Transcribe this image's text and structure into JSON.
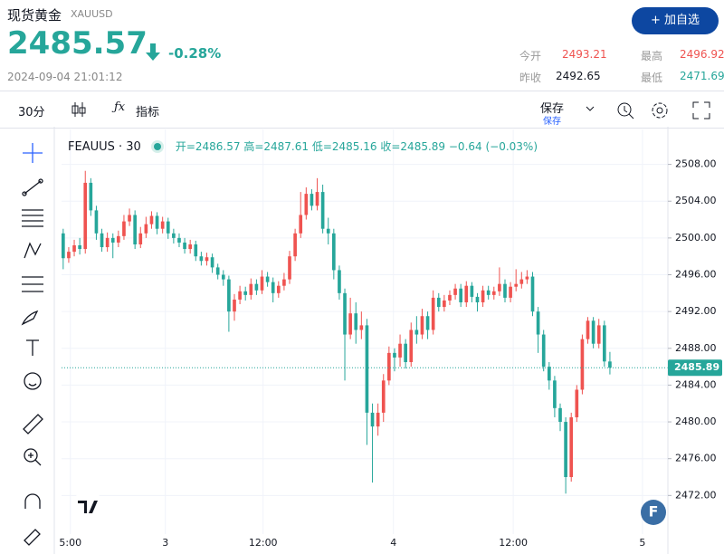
{
  "header": {
    "name": "现货黄金",
    "symbol": "XAUUSD",
    "price": "2485.57",
    "change": "-0.28%",
    "time": "2024-09-04 21:01:12",
    "button": "+ 加自选",
    "stats": [
      {
        "label": "今开",
        "value": "2493.21"
      },
      {
        "label": "最高",
        "value": "2496.92"
      },
      {
        "label": "昨收",
        "value": "2492.65"
      },
      {
        "label": "最低",
        "value": "2471.69"
      }
    ]
  },
  "toolbar": {
    "interval": "30分",
    "indicators": "指标",
    "save": "保存",
    "save_sub": "保存"
  },
  "chart_data": {
    "type": "candlestick",
    "symbol": "FEAUUS · 30",
    "ohlc_labels": [
      "开=",
      "高=",
      "低=",
      "收="
    ],
    "change": "−0.64 (−0.03%)",
    "colors": {
      "up": "#ef5350",
      "down": "#26a69a"
    },
    "grid": true,
    "xlim": [
      -0.3,
      109.5
    ],
    "ylim": [
      2467.8,
      2511.8
    ],
    "xticks": [
      {
        "value": 1.3,
        "label": "5:00"
      },
      {
        "value": 18.5,
        "label": "3"
      },
      {
        "value": 36.2,
        "label": "12:00"
      },
      {
        "value": 59.8,
        "label": "4"
      },
      {
        "value": 81.5,
        "label": "12:00"
      },
      {
        "value": 104.9,
        "label": "5"
      }
    ],
    "yticks": [
      {
        "value": 2472,
        "label": "2472.00"
      },
      {
        "value": 2476,
        "label": "2476.00"
      },
      {
        "value": 2480,
        "label": "2480.00"
      },
      {
        "value": 2484,
        "label": "2484.00"
      },
      {
        "value": 2488,
        "label": "2488.00"
      },
      {
        "value": 2492,
        "label": "2492.00"
      },
      {
        "value": 2496,
        "label": "2496.00"
      },
      {
        "value": 2500,
        "label": "2500.00"
      },
      {
        "value": 2504,
        "label": "2504.00"
      },
      {
        "value": 2508,
        "label": "2508.00"
      }
    ],
    "open": [
      2500.5,
      2497.8,
      2498.5,
      2499.2,
      2498.8,
      2506.0,
      2503.0,
      2500.5,
      2499.0,
      2500.0,
      2499.5,
      2500.2,
      2501.8,
      2502.5,
      2499.3,
      2500.5,
      2501.5,
      2502.4,
      2501.0,
      2501.8,
      2500.5,
      2500.0,
      2499.5,
      2498.8,
      2499.3,
      2498.0,
      2497.5,
      2497.9,
      2496.8,
      2496.0,
      2495.5,
      2492.0,
      2493.3,
      2494.2,
      2493.8,
      2495.0,
      2494.3,
      2495.8,
      2495.2,
      2494.0,
      2494.8,
      2495.5,
      2498.0,
      2500.5,
      2502.5,
      2504.8,
      2503.5,
      2505.0,
      2501.0,
      2500.5,
      2496.5,
      2494.0,
      2489.5,
      2491.8,
      2490.0,
      2490.5,
      2481.0,
      2479.5,
      2481.0,
      2484.5,
      2487.5,
      2487.0,
      2488.5,
      2486.5,
      2490.0,
      2489.5,
      2491.5,
      2490.0,
      2493.5,
      2492.5,
      2493.2,
      2493.8,
      2494.5,
      2493.0,
      2494.8,
      2493.6,
      2493.0,
      2494.3,
      2493.8,
      2494.2,
      2495.0,
      2493.5,
      2494.7,
      2495.0,
      2495.5,
      2495.8,
      2492.0,
      2489.5,
      2486.0,
      2484.5,
      2481.5,
      2480.0,
      2474.0,
      2480.5,
      2483.5,
      2489.0,
      2491.0,
      2488.5,
      2490.5,
      2486.57
    ],
    "high": [
      2501.0,
      2499.0,
      2499.8,
      2500.0,
      2507.3,
      2506.5,
      2503.5,
      2501.0,
      2500.6,
      2500.5,
      2500.8,
      2502.5,
      2503.2,
      2503.0,
      2501.2,
      2502.3,
      2502.9,
      2502.8,
      2502.3,
      2502.2,
      2501.0,
      2500.5,
      2500.0,
      2499.8,
      2499.7,
      2498.5,
      2498.4,
      2498.3,
      2497.2,
      2496.5,
      2495.9,
      2493.9,
      2494.8,
      2494.7,
      2495.6,
      2495.5,
      2496.5,
      2496.3,
      2495.7,
      2495.3,
      2496.2,
      2498.6,
      2501.0,
      2505.0,
      2505.5,
      2505.3,
      2506.5,
      2505.8,
      2502.2,
      2501.0,
      2497.0,
      2494.5,
      2493.5,
      2493.0,
      2492.0,
      2491.2,
      2482.0,
      2482.0,
      2485.2,
      2488.2,
      2488.0,
      2489.5,
      2489.0,
      2490.8,
      2491.5,
      2492.3,
      2492.0,
      2494.3,
      2494.0,
      2493.8,
      2494.3,
      2495.0,
      2495.0,
      2495.3,
      2495.2,
      2494.0,
      2494.8,
      2494.8,
      2494.7,
      2496.8,
      2495.5,
      2495.2,
      2496.6,
      2496.3,
      2496.5,
      2496.3,
      2492.5,
      2490.0,
      2486.5,
      2485.0,
      2482.0,
      2480.5,
      2481.0,
      2484.0,
      2489.5,
      2491.4,
      2491.4,
      2491.2,
      2491.0,
      2487.61
    ],
    "low": [
      2496.6,
      2497.3,
      2498.0,
      2498.2,
      2498.3,
      2502.4,
      2499.8,
      2498.5,
      2498.5,
      2497.8,
      2499.0,
      2499.8,
      2501.3,
      2498.8,
      2498.9,
      2500.0,
      2501.0,
      2500.4,
      2500.5,
      2499.9,
      2499.4,
      2499.0,
      2498.3,
      2498.3,
      2497.5,
      2497.0,
      2497.0,
      2496.2,
      2495.5,
      2494.8,
      2489.8,
      2491.0,
      2492.8,
      2493.2,
      2493.3,
      2493.8,
      2493.9,
      2494.7,
      2493.0,
      2493.5,
      2494.3,
      2495.0,
      2497.5,
      2500.0,
      2502.0,
      2503.0,
      2503.0,
      2500.5,
      2499.3,
      2495.5,
      2493.3,
      2484.5,
      2489.0,
      2488.5,
      2489.0,
      2477.5,
      2473.4,
      2478.5,
      2480.0,
      2484.0,
      2485.5,
      2486.0,
      2485.8,
      2486.0,
      2488.5,
      2489.0,
      2489.0,
      2489.5,
      2492.0,
      2492.0,
      2492.7,
      2493.3,
      2492.5,
      2492.5,
      2493.0,
      2492.0,
      2492.5,
      2493.3,
      2493.3,
      2493.7,
      2493.0,
      2493.0,
      2494.2,
      2494.5,
      2495.0,
      2491.5,
      2487.5,
      2485.5,
      2483.5,
      2480.5,
      2479.0,
      2472.2,
      2473.5,
      2480.0,
      2483.0,
      2488.5,
      2488.0,
      2488.0,
      2486.0,
      2485.16
    ],
    "close": [
      2497.8,
      2498.5,
      2499.2,
      2498.8,
      2506.0,
      2503.0,
      2500.5,
      2499.0,
      2500.0,
      2499.5,
      2500.2,
      2501.8,
      2502.5,
      2499.3,
      2500.5,
      2501.5,
      2502.4,
      2501.0,
      2501.8,
      2500.5,
      2500.0,
      2499.5,
      2498.8,
      2499.3,
      2498.0,
      2497.5,
      2497.9,
      2496.8,
      2496.0,
      2495.5,
      2492.0,
      2493.3,
      2494.2,
      2493.8,
      2495.0,
      2494.3,
      2495.8,
      2495.2,
      2494.0,
      2494.8,
      2495.5,
      2498.0,
      2500.5,
      2502.5,
      2504.8,
      2503.5,
      2505.0,
      2501.0,
      2500.5,
      2496.5,
      2494.0,
      2489.5,
      2491.8,
      2490.0,
      2490.5,
      2481.0,
      2479.5,
      2481.0,
      2484.5,
      2487.5,
      2487.0,
      2488.5,
      2486.5,
      2490.0,
      2489.5,
      2491.5,
      2490.0,
      2493.5,
      2492.5,
      2493.2,
      2493.8,
      2494.5,
      2493.0,
      2494.8,
      2493.6,
      2493.0,
      2494.3,
      2493.8,
      2494.2,
      2495.0,
      2493.5,
      2494.7,
      2495.0,
      2495.5,
      2495.8,
      2492.0,
      2489.5,
      2486.0,
      2484.5,
      2481.5,
      2480.0,
      2474.0,
      2480.5,
      2483.5,
      2489.0,
      2491.0,
      2488.5,
      2490.5,
      2486.57,
      2485.89
    ]
  }
}
